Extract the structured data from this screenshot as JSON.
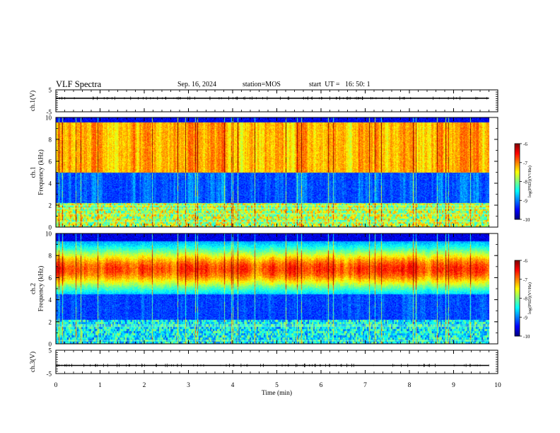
{
  "header": {
    "title": "VLF Spectra",
    "date": "Sep. 16, 2024",
    "station": "station=MOS",
    "start": "start  UT =   16: 50: 1"
  },
  "chart_data": [
    {
      "type": "line",
      "panel": "ch1-waveform",
      "ylabel": "ch.1(V)",
      "ylim": [
        -5,
        5
      ],
      "yticks": [
        "5",
        "-5"
      ],
      "xlim": [
        0,
        10
      ],
      "series": [
        {
          "values": [
            1.2,
            1.2,
            1.2,
            1.2,
            1.2,
            1.2,
            1.2,
            1.2,
            1.2,
            1.2
          ]
        }
      ],
      "x": [
        0,
        1.1,
        2.2,
        3.3,
        4.4,
        5.5,
        6.6,
        7.7,
        8.8,
        9.8
      ]
    },
    {
      "type": "heatmap",
      "panel": "ch1-spectrogram",
      "ylabel": "ch.1\nFrequency (kHz)",
      "ylim": [
        0,
        10
      ],
      "yticks": [
        "0",
        "2",
        "4",
        "6",
        "8",
        "10"
      ],
      "xlim": [
        0,
        10
      ],
      "data_extent_min": 9.8,
      "colorbar": {
        "label": "log(PSD)(V²/Hz)",
        "range": [
          -10,
          -6
        ],
        "ticks": [
          "-6",
          "-7",
          "-8",
          "-9",
          "-10"
        ]
      }
    },
    {
      "type": "heatmap",
      "panel": "ch2-spectrogram",
      "ylabel": "ch.2\nFrequency (kHz)",
      "ylim": [
        0,
        10
      ],
      "yticks": [
        "0",
        "2",
        "4",
        "6",
        "8",
        "10"
      ],
      "xlim": [
        0,
        10
      ],
      "data_extent_min": 9.8,
      "colorbar": {
        "label": "log(PSD)(V²/Hz)",
        "range": [
          -10,
          -6
        ],
        "ticks": [
          "-6",
          "-7",
          "-8",
          "-9",
          "-10"
        ]
      }
    },
    {
      "type": "line",
      "panel": "ch3-waveform",
      "ylabel": "ch.3(V)",
      "ylim": [
        -5,
        5
      ],
      "yticks": [
        "5",
        "-5"
      ],
      "xlim": [
        0,
        10
      ],
      "xlabel": "Time  (min)",
      "xticks": [
        "0",
        "1",
        "2",
        "3",
        "4",
        "5",
        "6",
        "7",
        "8",
        "9",
        "10"
      ],
      "series": [
        {
          "values": [
            -1.5,
            -1.5,
            -1.5,
            -1.5,
            -1.5,
            -1.5,
            -1.5,
            -1.5,
            -1.5,
            -1.5
          ]
        }
      ],
      "x": [
        0,
        1.1,
        2.2,
        3.3,
        4.4,
        5.5,
        6.6,
        7.7,
        8.8,
        9.8
      ]
    }
  ]
}
